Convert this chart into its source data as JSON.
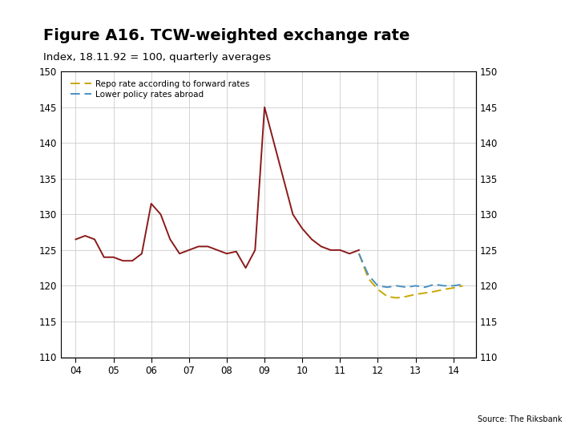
{
  "title": "Figure A16. TCW-weighted exchange rate",
  "subtitle": "Index, 18.11.92 = 100, quarterly averages",
  "source": "Source: The Riksbank",
  "ylim": [
    110,
    150
  ],
  "yticks": [
    110,
    115,
    120,
    125,
    130,
    135,
    140,
    145,
    150
  ],
  "xtick_vals": [
    2004,
    2005,
    2006,
    2007,
    2008,
    2009,
    2010,
    2011,
    2012,
    2013,
    2014
  ],
  "xtick_labels": [
    "04",
    "05",
    "06",
    "07",
    "08",
    "09",
    "10",
    "11",
    "12",
    "13",
    "14"
  ],
  "xlim": [
    2003.6,
    2014.6
  ],
  "background_color": "#ffffff",
  "grid_color": "#cccccc",
  "footer_bar_color": "#1a3a6b",
  "solid_line": {
    "color": "#8b1a1a",
    "x": [
      2004.0,
      2004.25,
      2004.5,
      2004.75,
      2005.0,
      2005.25,
      2005.5,
      2005.75,
      2006.0,
      2006.25,
      2006.5,
      2006.75,
      2007.0,
      2007.25,
      2007.5,
      2007.75,
      2008.0,
      2008.25,
      2008.5,
      2008.75,
      2009.0,
      2009.25,
      2009.5,
      2009.75,
      2010.0,
      2010.25,
      2010.5,
      2010.75,
      2011.0,
      2011.25,
      2011.5
    ],
    "y": [
      126.5,
      127.0,
      126.5,
      124.0,
      124.0,
      123.5,
      123.5,
      124.5,
      131.5,
      130.0,
      126.5,
      124.5,
      125.0,
      125.5,
      125.5,
      125.0,
      124.5,
      124.8,
      122.5,
      125.0,
      145.0,
      140.0,
      135.0,
      130.0,
      128.0,
      126.5,
      125.5,
      125.0,
      125.0,
      124.5,
      125.0
    ]
  },
  "dashed_line1": {
    "label": "Repo rate according to forward rates",
    "color": "#c8a800",
    "x": [
      2011.5,
      2011.75,
      2012.0,
      2012.25,
      2012.5,
      2012.75,
      2013.0,
      2013.25,
      2013.5,
      2013.75,
      2014.0,
      2014.25
    ],
    "y": [
      124.5,
      121.0,
      119.5,
      118.5,
      118.3,
      118.5,
      118.8,
      119.0,
      119.2,
      119.5,
      119.7,
      120.0
    ]
  },
  "dashed_line2": {
    "label": "Lower policy rates abroad",
    "color": "#4a90c4",
    "x": [
      2011.5,
      2011.75,
      2012.0,
      2012.25,
      2012.5,
      2012.75,
      2013.0,
      2013.25,
      2013.5,
      2013.75,
      2014.0,
      2014.25
    ],
    "y": [
      124.5,
      121.5,
      120.0,
      119.8,
      120.0,
      119.8,
      120.0,
      119.8,
      120.2,
      120.0,
      120.0,
      120.2
    ]
  }
}
